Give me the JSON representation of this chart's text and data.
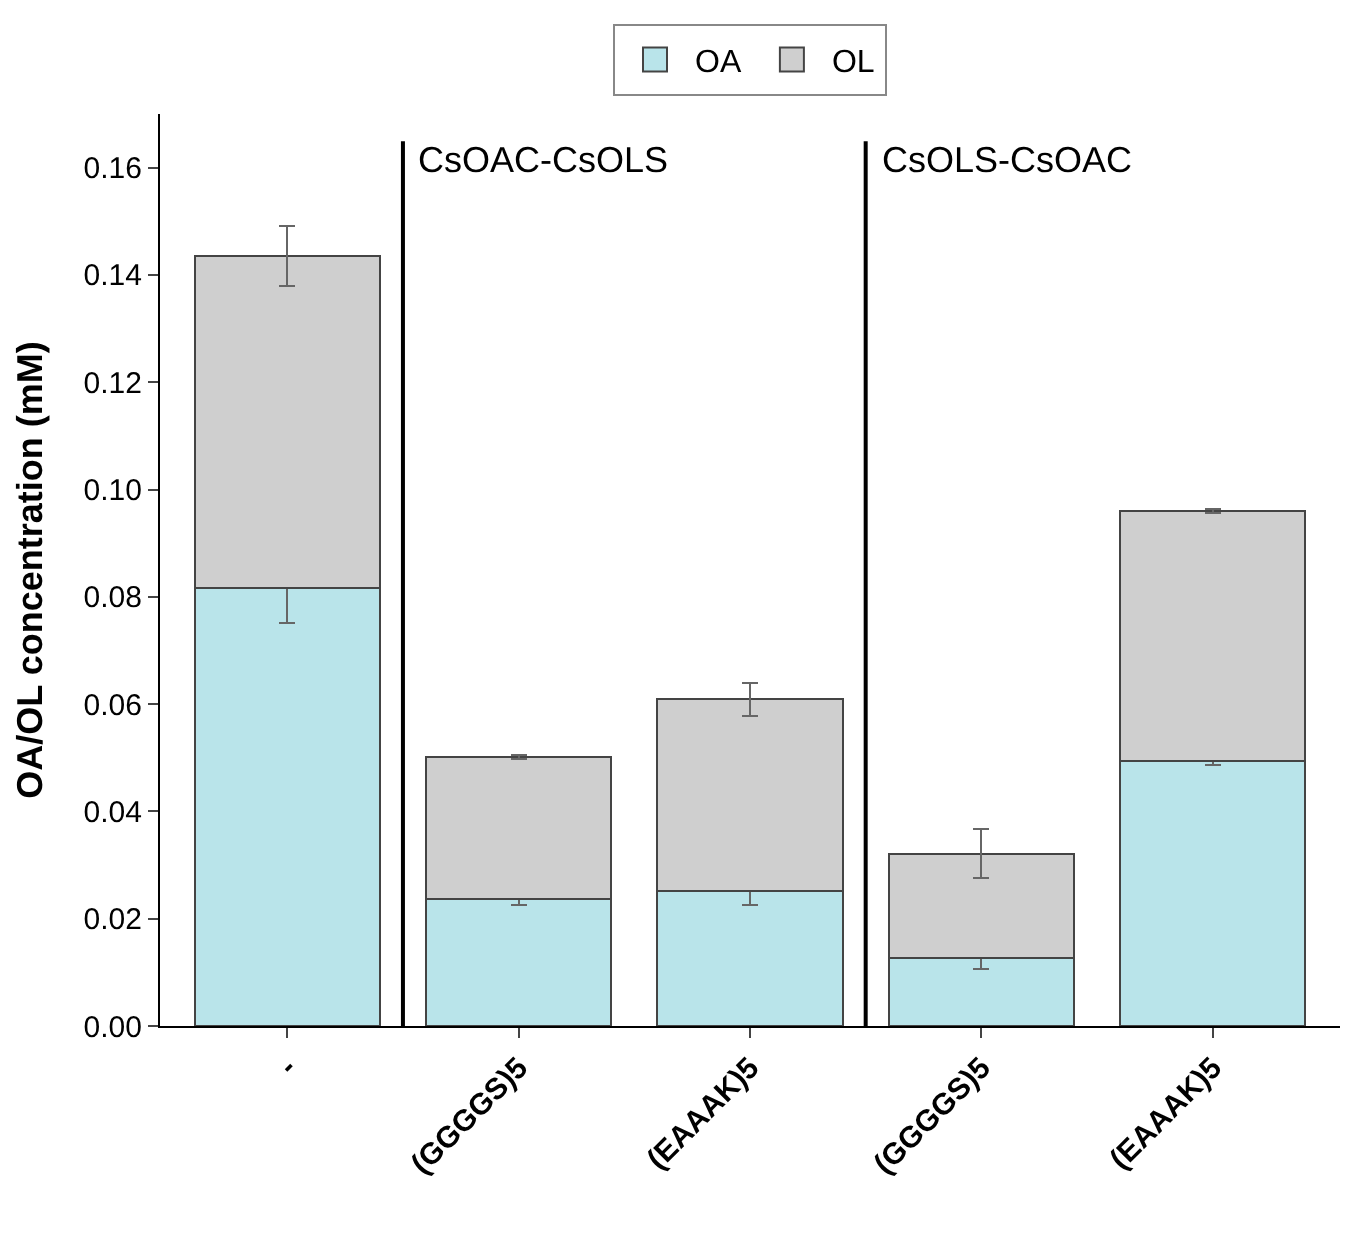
{
  "chart_data": {
    "type": "bar",
    "stacked": true,
    "ylabel": "OA/OL concentration (mM)",
    "categories": [
      "-",
      "(GGGGS)5",
      "(EAAAK)5",
      "(GGGGS)5",
      "(EAAAK)5"
    ],
    "series": [
      {
        "name": "OA",
        "color": "#b9e4ea",
        "values": [
          0.0816,
          0.0236,
          0.0252,
          0.0127,
          0.0494
        ],
        "errors": [
          0.0064,
          0.001,
          0.0027,
          0.0021,
          0.0007
        ]
      },
      {
        "name": "OL",
        "color": "#cfcfcf",
        "values": [
          0.0619,
          0.0266,
          0.0357,
          0.0194,
          0.0466
        ],
        "errors": [
          0.0056,
          0.0004,
          0.0031,
          0.0046,
          0.0003
        ]
      }
    ],
    "ylim": [
      0,
      0.17
    ],
    "yticks": [
      {
        "value": 0,
        "label": "0.00"
      },
      0.02,
      0.04,
      0.06,
      0.08,
      {
        "value": 0.1,
        "label": "0.10"
      },
      0.12,
      0.14,
      0.16
    ],
    "annotations": [
      "CsOAC-CsOLS",
      "CsOLS-CsOAC"
    ],
    "legend": "top"
  }
}
